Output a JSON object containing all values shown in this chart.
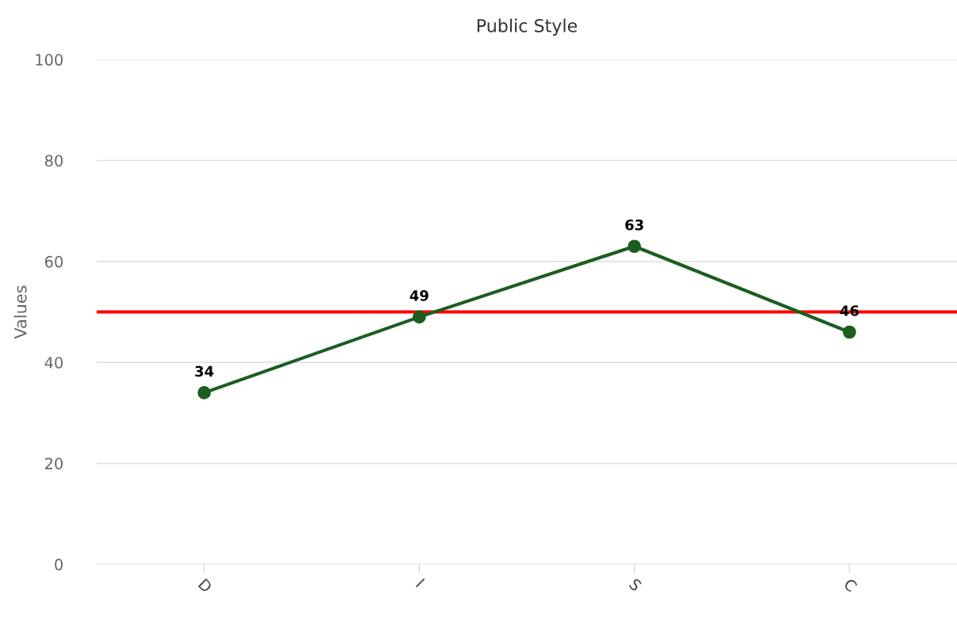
{
  "chart_data": {
    "type": "line",
    "title": "Public Style",
    "ylabel": "Values",
    "categories": [
      "D",
      "I",
      "S",
      "C"
    ],
    "series": [
      {
        "color": "#1b5e20",
        "values": [
          34,
          49,
          63,
          46
        ]
      }
    ],
    "ylim": [
      0,
      100
    ],
    "yticks": [
      0,
      20,
      40,
      60,
      80,
      100
    ],
    "grid": "y",
    "marker": "circle",
    "line_style": "solid",
    "data_labels": true,
    "legend": false,
    "ref_lines": [
      {
        "axis": "y",
        "value": 50,
        "color": "#ff0000"
      }
    ]
  }
}
